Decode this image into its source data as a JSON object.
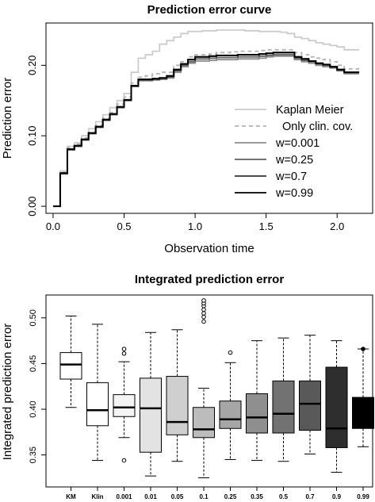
{
  "chart_data": [
    {
      "type": "line",
      "title": "Prediction error curve",
      "xlabel": "Observation time",
      "ylabel": "Prediction error",
      "xlim": [
        -0.05,
        2.25
      ],
      "ylim": [
        -0.01,
        0.26
      ],
      "x_ticks": [
        "0.0",
        "0.5",
        "1.0",
        "1.5",
        "2.0"
      ],
      "y_ticks": [
        "0.00",
        "0.10",
        "0.20"
      ],
      "legend_position": "bottom-right",
      "x": [
        0.0,
        0.05,
        0.1,
        0.15,
        0.2,
        0.25,
        0.3,
        0.35,
        0.4,
        0.45,
        0.5,
        0.55,
        0.6,
        0.65,
        0.7,
        0.75,
        0.8,
        0.85,
        0.9,
        0.95,
        1.0,
        1.05,
        1.1,
        1.15,
        1.2,
        1.25,
        1.3,
        1.35,
        1.4,
        1.45,
        1.5,
        1.55,
        1.6,
        1.65,
        1.7,
        1.75,
        1.8,
        1.85,
        1.9,
        1.95,
        2.0,
        2.05,
        2.1,
        2.15
      ],
      "series": [
        {
          "name": "Kaplan Meier",
          "color": "#cccccc",
          "dash": false,
          "values": [
            0.0,
            0.05,
            0.085,
            0.09,
            0.1,
            0.11,
            0.12,
            0.13,
            0.14,
            0.15,
            0.16,
            0.19,
            0.21,
            0.215,
            0.22,
            0.23,
            0.235,
            0.24,
            0.245,
            0.248,
            0.248,
            0.249,
            0.249,
            0.25,
            0.25,
            0.25,
            0.25,
            0.249,
            0.249,
            0.248,
            0.248,
            0.248,
            0.247,
            0.245,
            0.24,
            0.238,
            0.235,
            0.232,
            0.23,
            0.228,
            0.226,
            0.222,
            0.222,
            0.221
          ]
        },
        {
          "name": "Only clin. cov.",
          "color": "#b3b3b3",
          "dash": true,
          "values": [
            0.0,
            0.048,
            0.083,
            0.088,
            0.097,
            0.105,
            0.115,
            0.125,
            0.133,
            0.145,
            0.155,
            0.175,
            0.183,
            0.185,
            0.188,
            0.19,
            0.19,
            0.2,
            0.205,
            0.212,
            0.215,
            0.215,
            0.216,
            0.218,
            0.218,
            0.219,
            0.22,
            0.22,
            0.22,
            0.221,
            0.222,
            0.222,
            0.222,
            0.222,
            0.218,
            0.215,
            0.212,
            0.21,
            0.208,
            0.205,
            0.2,
            0.195,
            0.195,
            0.194
          ]
        },
        {
          "name": "w=0.001",
          "color": "#8c8c8c",
          "dash": false,
          "values": [
            0.0,
            0.046,
            0.08,
            0.085,
            0.094,
            0.103,
            0.112,
            0.122,
            0.13,
            0.14,
            0.15,
            0.17,
            0.178,
            0.178,
            0.179,
            0.18,
            0.182,
            0.19,
            0.198,
            0.203,
            0.206,
            0.206,
            0.207,
            0.208,
            0.208,
            0.208,
            0.209,
            0.209,
            0.209,
            0.21,
            0.212,
            0.213,
            0.213,
            0.213,
            0.208,
            0.205,
            0.203,
            0.2,
            0.198,
            0.196,
            0.192,
            0.188,
            0.188,
            0.187
          ]
        },
        {
          "name": "w=0.25",
          "color": "#5f5f5f",
          "dash": false,
          "values": [
            0.0,
            0.046,
            0.08,
            0.085,
            0.094,
            0.103,
            0.112,
            0.122,
            0.13,
            0.14,
            0.15,
            0.17,
            0.179,
            0.179,
            0.18,
            0.181,
            0.183,
            0.192,
            0.2,
            0.205,
            0.209,
            0.209,
            0.21,
            0.211,
            0.211,
            0.211,
            0.212,
            0.212,
            0.212,
            0.213,
            0.214,
            0.215,
            0.215,
            0.215,
            0.21,
            0.207,
            0.205,
            0.202,
            0.2,
            0.197,
            0.193,
            0.19,
            0.19,
            0.189
          ]
        },
        {
          "name": "w=0.7",
          "color": "#333333",
          "dash": false,
          "values": [
            0.0,
            0.047,
            0.081,
            0.086,
            0.095,
            0.104,
            0.113,
            0.123,
            0.131,
            0.141,
            0.151,
            0.171,
            0.18,
            0.18,
            0.181,
            0.182,
            0.185,
            0.194,
            0.202,
            0.208,
            0.212,
            0.212,
            0.213,
            0.214,
            0.214,
            0.214,
            0.215,
            0.215,
            0.215,
            0.216,
            0.217,
            0.218,
            0.218,
            0.218,
            0.212,
            0.209,
            0.206,
            0.203,
            0.201,
            0.198,
            0.194,
            0.19,
            0.19,
            0.189
          ]
        },
        {
          "name": "w=0.99",
          "color": "#000000",
          "dash": false,
          "values": [
            0.0,
            0.047,
            0.081,
            0.086,
            0.095,
            0.104,
            0.113,
            0.123,
            0.131,
            0.141,
            0.151,
            0.171,
            0.18,
            0.18,
            0.181,
            0.182,
            0.185,
            0.194,
            0.202,
            0.208,
            0.212,
            0.212,
            0.213,
            0.214,
            0.214,
            0.214,
            0.215,
            0.215,
            0.215,
            0.216,
            0.217,
            0.218,
            0.218,
            0.218,
            0.212,
            0.209,
            0.206,
            0.203,
            0.201,
            0.198,
            0.194,
            0.19,
            0.19,
            0.189
          ]
        }
      ]
    },
    {
      "type": "boxplot",
      "title": "Integrated prediction error",
      "xlabel": "",
      "ylabel": "Integrated prediction error",
      "ylim": [
        0.315,
        0.525
      ],
      "y_ticks": [
        "0.35",
        "0.40",
        "0.45",
        "0.50"
      ],
      "categories": [
        "KM",
        "Klin",
        "0.001",
        "0.01",
        "0.05",
        "0.1",
        "0.25",
        "0.35",
        "0.5",
        "0.7",
        "0.9",
        "0.99"
      ],
      "boxes": [
        {
          "color": "#ffffff",
          "whisker_low": 0.402,
          "q1": 0.433,
          "median": 0.449,
          "q3": 0.462,
          "whisker_high": 0.502,
          "outliers": []
        },
        {
          "color": "#ffffff",
          "whisker_low": 0.344,
          "q1": 0.382,
          "median": 0.399,
          "q3": 0.429,
          "whisker_high": 0.493,
          "outliers": []
        },
        {
          "color": "#f4f4f4",
          "whisker_low": 0.369,
          "q1": 0.392,
          "median": 0.402,
          "q3": 0.416,
          "whisker_high": 0.452,
          "outliers": [
            0.344,
            0.461,
            0.466
          ]
        },
        {
          "color": "#e3e3e3",
          "whisker_low": 0.327,
          "q1": 0.353,
          "median": 0.401,
          "q3": 0.434,
          "whisker_high": 0.484,
          "outliers": []
        },
        {
          "color": "#cfcfcf",
          "whisker_low": 0.343,
          "q1": 0.372,
          "median": 0.386,
          "q3": 0.436,
          "whisker_high": 0.487,
          "outliers": []
        },
        {
          "color": "#bcbcbc",
          "whisker_low": 0.325,
          "q1": 0.369,
          "median": 0.378,
          "q3": 0.402,
          "whisker_high": 0.423,
          "outliers": [
            0.496,
            0.501,
            0.505,
            0.509,
            0.513,
            0.516,
            0.519
          ]
        },
        {
          "color": "#a6a6a6",
          "whisker_low": 0.345,
          "q1": 0.379,
          "median": 0.389,
          "q3": 0.409,
          "whisker_high": 0.451,
          "outliers": [
            0.462
          ]
        },
        {
          "color": "#8f8f8f",
          "whisker_low": 0.344,
          "q1": 0.374,
          "median": 0.391,
          "q3": 0.417,
          "whisker_high": 0.475,
          "outliers": []
        },
        {
          "color": "#727272",
          "whisker_low": 0.343,
          "q1": 0.374,
          "median": 0.395,
          "q3": 0.431,
          "whisker_high": 0.478,
          "outliers": []
        },
        {
          "color": "#595959",
          "whisker_low": 0.351,
          "q1": 0.377,
          "median": 0.406,
          "q3": 0.431,
          "whisker_high": 0.481,
          "outliers": []
        },
        {
          "color": "#2e2e2e",
          "whisker_low": 0.331,
          "q1": 0.358,
          "median": 0.379,
          "q3": 0.446,
          "whisker_high": 0.475,
          "outliers": []
        },
        {
          "color": "#000000",
          "whisker_low": 0.359,
          "q1": 0.379,
          "median": 0.397,
          "q3": 0.413,
          "whisker_high": 0.466,
          "outliers": [
            0.466
          ]
        }
      ]
    }
  ]
}
